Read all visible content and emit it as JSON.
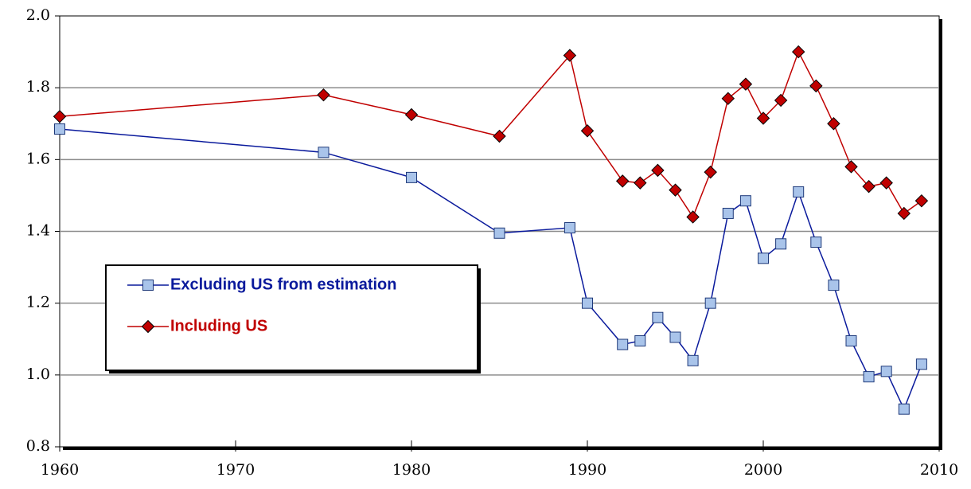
{
  "chart_data": {
    "type": "line",
    "x": [
      1960,
      1975,
      1980,
      1985,
      1989,
      1990,
      1992,
      1993,
      1994,
      1995,
      1996,
      1997,
      1998,
      1999,
      2000,
      2001,
      2002,
      2003,
      2004,
      2005,
      2006,
      2007,
      2008,
      2009
    ],
    "series": [
      {
        "name": "Excluding US from estimation",
        "color": "#0a1a9c",
        "marker_color": "#a9c4ea",
        "values": [
          1.685,
          1.62,
          1.55,
          1.395,
          1.41,
          1.2,
          1.085,
          1.095,
          1.16,
          1.105,
          1.04,
          1.2,
          1.45,
          1.485,
          1.325,
          1.365,
          1.51,
          1.37,
          1.25,
          1.095,
          0.995,
          1.01,
          0.905,
          1.03
        ]
      },
      {
        "name": "Including US",
        "color": "#c00000",
        "marker_color": "#c00000",
        "values": [
          1.72,
          1.78,
          1.725,
          1.665,
          1.89,
          1.68,
          1.54,
          1.535,
          1.57,
          1.515,
          1.44,
          1.565,
          1.77,
          1.81,
          1.715,
          1.765,
          1.9,
          1.805,
          1.7,
          1.58,
          1.525,
          1.535,
          1.45,
          1.485
        ]
      }
    ],
    "xlim": [
      1960,
      2010
    ],
    "xticks": [
      1960,
      1970,
      1980,
      1990,
      2000,
      2010
    ],
    "ylim": [
      0.8,
      2.0
    ],
    "yticks": [
      0.8,
      {
        "value": 1,
        "label": "1.0"
      },
      1.2,
      1.4,
      1.6,
      1.8,
      {
        "value": 2,
        "label": "2.0"
      }
    ],
    "grid": true
  }
}
